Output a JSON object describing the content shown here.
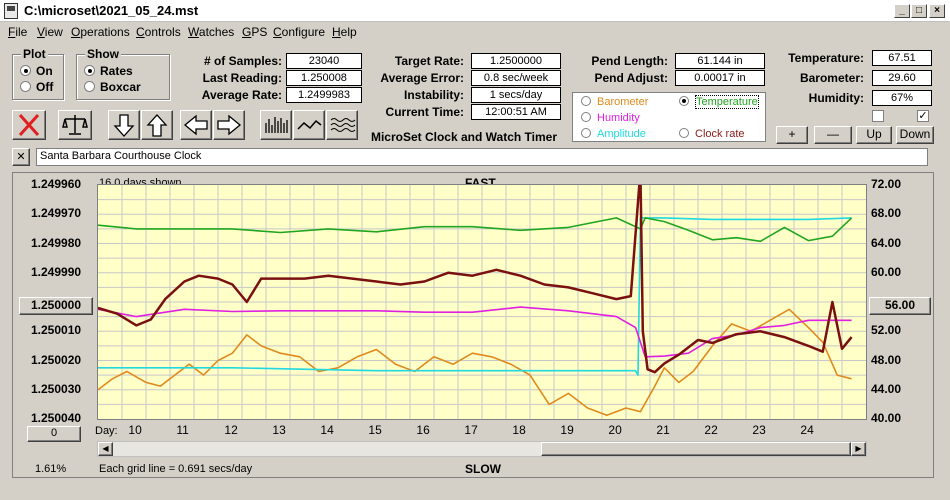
{
  "window": {
    "title": "C:\\microset\\2021_05_24.mst"
  },
  "menu": [
    "File",
    "View",
    "Operations",
    "Controls",
    "Watches",
    "GPS",
    "Configure",
    "Help"
  ],
  "plot_group": {
    "caption": "Plot",
    "on": "On",
    "off": "Off",
    "selected": "On"
  },
  "show_group": {
    "caption": "Show",
    "rates": "Rates",
    "boxcar": "Boxcar",
    "selected": "Rates"
  },
  "stats": {
    "samples_label": "# of Samples:",
    "samples": "23040",
    "last_label": "Last Reading:",
    "last": "1.250008",
    "avg_label": "Average Rate:",
    "avg": "1.2499983",
    "target_label": "Target Rate:",
    "target": "1.2500000",
    "avgerr_label": "Average Error:",
    "avgerr": "0.8 sec/week",
    "instab_label": "Instability:",
    "instab": "1 secs/day",
    "time_label": "Current Time:",
    "time": "12:00:51 AM",
    "pendlen_label": "Pend Length:",
    "pendlen": "61.144 in",
    "pendadj_label": "Pend Adjust:",
    "pendadj": "0.00017 in",
    "temp_label": "Temperature:",
    "temp": "67.51",
    "baro_label": "Barometer:",
    "baro": "29.60",
    "hum_label": "Humidity:",
    "hum": "67%"
  },
  "app_caption": "MicroSet Clock and Watch Timer",
  "aux_options": [
    {
      "label": "Barometer",
      "color": "#e08a1e",
      "on": false
    },
    {
      "label": "Temperature",
      "color": "#1fa51f",
      "on": true
    },
    {
      "label": "Humidity",
      "color": "#e020e0",
      "on": false
    },
    {
      "label": "Amplitude",
      "color": "#20d8e0",
      "on": false
    },
    {
      "label": "Clock rate",
      "color": "#8b1a1a",
      "on": false
    }
  ],
  "aux_buttons": {
    "plus": "+",
    "minus": "—",
    "up": "Up",
    "down": "Down"
  },
  "checks": {
    "left": "",
    "right": "✓"
  },
  "clock_name": "Santa Barbara Courthouse Clock",
  "chart": {
    "days_shown": "16.0 days shown",
    "top_label": "FAST",
    "bottom_label": "SLOW",
    "grid_note": "Each grid line = 0.691 secs/day",
    "percent": "1.61%",
    "left_button": "1.250000",
    "right_button": "56.00",
    "zero_button": "0",
    "day_label": "Day:"
  },
  "chart_data": {
    "type": "line",
    "title": "FAST",
    "x_label": "Day:",
    "x_range": [
      9.2,
      25.2
    ],
    "x_ticks": [
      10,
      11,
      12,
      13,
      14,
      15,
      16,
      17,
      18,
      19,
      20,
      21,
      22,
      23,
      24
    ],
    "y_left_ticks": [
      "1.249960",
      "1.249970",
      "1.249980",
      "1.249990",
      "1.250000",
      "1.250010",
      "1.250020",
      "1.250030",
      "1.250040"
    ],
    "y_left_range": [
      1.24996,
      1.25004
    ],
    "y_left_inverted": true,
    "y_right_ticks": [
      "72.00",
      "68.00",
      "64.00",
      "60.00",
      "56.00",
      "52.00",
      "48.00",
      "44.00",
      "40.00"
    ],
    "y_right_range": [
      40,
      72
    ],
    "grid": true,
    "series": [
      {
        "name": "Clock rate",
        "axis": "left",
        "color": "#7a1010",
        "x": [
          9.2,
          9.6,
          10.0,
          10.3,
          10.6,
          11.0,
          11.3,
          11.7,
          12.0,
          12.3,
          12.6,
          13.0,
          13.5,
          14.0,
          14.5,
          15.0,
          15.5,
          16.0,
          16.5,
          17.0,
          17.5,
          18.0,
          18.5,
          19.0,
          19.5,
          20.0,
          20.3,
          20.5,
          20.55,
          20.65,
          20.8,
          21.0,
          21.3,
          21.7,
          22.0,
          22.5,
          23.0,
          23.5,
          24.0,
          24.3,
          24.5,
          24.7,
          24.9
        ],
        "y": [
          1.250002,
          1.250004,
          1.250008,
          1.250006,
          1.249999,
          1.249993,
          1.249991,
          1.249992,
          1.249994,
          1.25,
          1.249992,
          1.249992,
          1.249992,
          1.249991,
          1.249992,
          1.249993,
          1.249994,
          1.249993,
          1.24999,
          1.249991,
          1.249989,
          1.249991,
          1.249994,
          1.249995,
          1.249997,
          1.249999,
          1.249998,
          1.249955,
          1.25001,
          1.250023,
          1.250024,
          1.250021,
          1.250018,
          1.250013,
          1.250014,
          1.250011,
          1.25001,
          1.250012,
          1.250015,
          1.250017,
          1.25,
          1.250016,
          1.250012
        ]
      },
      {
        "name": "Temperature",
        "axis": "right",
        "color": "#1fa51f",
        "x": [
          9.2,
          10.0,
          11.0,
          12.0,
          13.0,
          14.0,
          15.0,
          16.0,
          17.0,
          18.0,
          19.0,
          20.0,
          20.5,
          20.6,
          21.0,
          21.5,
          22.0,
          22.5,
          23.0,
          23.5,
          24.0,
          24.5,
          24.9
        ],
        "y": [
          66.5,
          66.0,
          66.0,
          66.0,
          65.5,
          66.0,
          65.6,
          66.3,
          66.3,
          65.8,
          66.2,
          67.5,
          66.0,
          67.5,
          67.0,
          65.8,
          64.5,
          64.8,
          64.3,
          66.2,
          64.4,
          65.0,
          67.5
        ]
      },
      {
        "name": "Humidity",
        "axis": "right",
        "color": "#e020e0",
        "x": [
          9.2,
          10.0,
          11.0,
          12.0,
          13.0,
          14.0,
          15.0,
          16.0,
          17.0,
          18.0,
          19.0,
          20.0,
          20.4,
          20.6,
          21.0,
          21.5,
          22.0,
          22.5,
          23.0,
          23.5,
          24.0,
          24.5,
          24.9
        ],
        "y": [
          55.0,
          54.0,
          55.0,
          54.7,
          54.8,
          54.8,
          54.8,
          54.6,
          54.6,
          55.3,
          54.8,
          54.0,
          52.5,
          48.5,
          48.6,
          49.0,
          51.0,
          51.5,
          52.5,
          52.8,
          53.5,
          53.5,
          53.5
        ]
      },
      {
        "name": "Amplitude",
        "axis": "right",
        "color": "#20d8e0",
        "x": [
          9.2,
          12.0,
          15.0,
          18.0,
          20.4,
          20.45,
          20.5,
          21.0,
          22.0,
          23.0,
          24.0,
          24.9
        ],
        "y": [
          47.0,
          47.0,
          46.6,
          46.6,
          46.6,
          46.0,
          67.5,
          67.5,
          67.3,
          67.3,
          67.3,
          67.5
        ]
      },
      {
        "name": "Barometer",
        "axis": "right",
        "color": "#e08a1e",
        "x": [
          9.2,
          9.5,
          9.8,
          10.2,
          10.5,
          10.8,
          11.1,
          11.4,
          11.7,
          12.0,
          12.3,
          12.6,
          13.0,
          13.4,
          13.8,
          14.2,
          14.6,
          15.0,
          15.4,
          15.8,
          16.2,
          16.6,
          17.0,
          17.4,
          17.8,
          18.2,
          18.6,
          19.0,
          19.4,
          19.8,
          20.2,
          20.5,
          20.8,
          21.0,
          21.3,
          21.6,
          22.0,
          22.4,
          22.8,
          23.2,
          23.6,
          24.0,
          24.3,
          24.6,
          24.9
        ],
        "y": [
          44.0,
          45.5,
          46.5,
          45.0,
          44.5,
          46.0,
          47.5,
          46.0,
          48.0,
          49.0,
          51.5,
          50.0,
          49.0,
          48.5,
          46.5,
          47.0,
          48.5,
          49.5,
          47.5,
          46.5,
          48.5,
          47.5,
          49.0,
          48.5,
          47.5,
          46.0,
          42.0,
          43.5,
          41.5,
          40.5,
          41.5,
          41.0,
          44.5,
          47.0,
          45.0,
          46.5,
          50.0,
          53.0,
          52.0,
          53.5,
          55.0,
          52.5,
          50.5,
          46.0,
          45.5
        ]
      }
    ]
  }
}
